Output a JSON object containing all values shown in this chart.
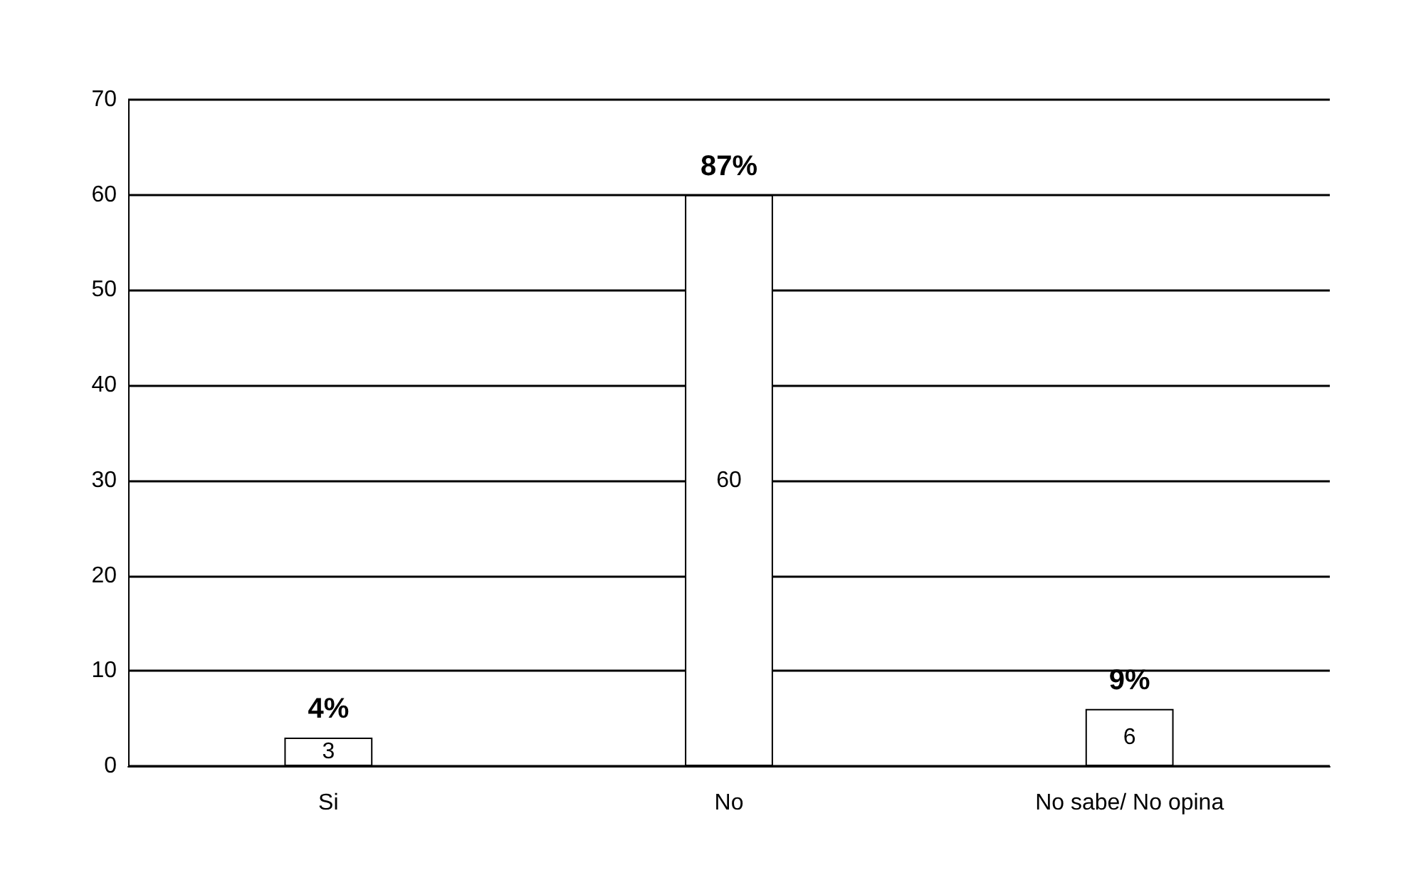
{
  "chart_data": {
    "type": "bar",
    "categories": [
      "Si",
      "No",
      "No sabe/ No opina"
    ],
    "values": [
      3,
      60,
      6
    ],
    "color": "#ffffff",
    "data_labels": true,
    "ylim": [
      0,
      70
    ],
    "yticks": [
      0,
      10,
      20,
      30,
      40,
      50,
      60,
      70
    ],
    "grid": "y",
    "annotations": [
      {
        "text": "4%",
        "x": "Si",
        "y": 3
      },
      {
        "text": "87%",
        "x": "No",
        "y": 60
      },
      {
        "text": "9%",
        "x": "No sabe/ No opina",
        "y": 6
      }
    ]
  }
}
